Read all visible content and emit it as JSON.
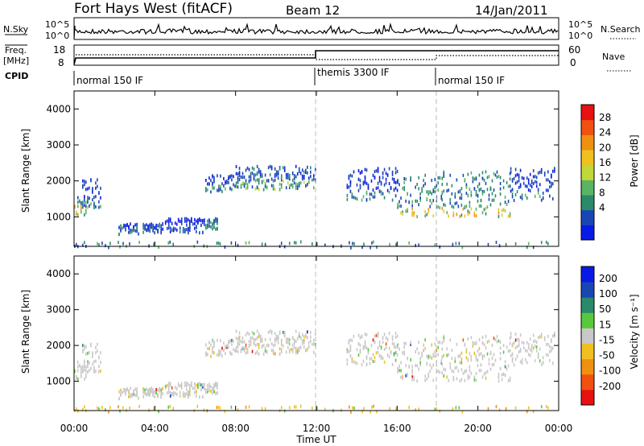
{
  "header": {
    "title": "Fort Hays West (fitACF)",
    "beam": "Beam 12",
    "date": "14/Jan/2011"
  },
  "top_panels": {
    "nsky_label": "N.Sky",
    "nsky_ticks": [
      "10^5",
      "10^0"
    ],
    "nsearch_label": "N.Search",
    "nsearch_ticks": [
      "10^5",
      "10^0"
    ],
    "freq_label": "Freq.",
    "freq_unit": "[MHz]",
    "freq_ticks": [
      "18",
      "8"
    ],
    "nave_label": "Nave",
    "nave_ticks": [
      "60",
      "0"
    ],
    "cpid_label": "CPID",
    "cpid_segments": [
      {
        "label": "normal 150 IF",
        "start": 0,
        "end": 12
      },
      {
        "label": "themis 3300 IF",
        "start": 12,
        "end": 18
      },
      {
        "label": "normal 150 IF",
        "start": 18,
        "end": 24
      }
    ]
  },
  "chart_data": [
    {
      "type": "heatmap",
      "panel": "power",
      "ylabel": "Slant Range [km]",
      "ylim": [
        180,
        4500
      ],
      "yticks": [
        "4000",
        "3000",
        "2000",
        "1000"
      ],
      "colorbar_label": "Power [dB]",
      "colorbar_ticks": [
        "28",
        "24",
        "20",
        "16",
        "12",
        "8",
        "4"
      ],
      "colors": [
        "#0a1ae6",
        "#1a46b4",
        "#2a8a6a",
        "#5ab464",
        "#c0d838",
        "#f0c020",
        "#f09010",
        "#f05010",
        "#e81010"
      ],
      "echo_regions": [
        {
          "t0": 0.0,
          "t1": 0.7,
          "r_low": 1100,
          "r_high": 1600,
          "peak": 24
        },
        {
          "t0": 0.4,
          "t1": 1.3,
          "r_low": 1300,
          "r_high": 2100,
          "peak": 12
        },
        {
          "t0": 2.2,
          "t1": 3.2,
          "r_low": 550,
          "r_high": 850,
          "peak": 8
        },
        {
          "t0": 3.4,
          "t1": 4.4,
          "r_low": 600,
          "r_high": 850,
          "peak": 8
        },
        {
          "t0": 4.5,
          "t1": 6.5,
          "r_low": 600,
          "r_high": 1000,
          "peak": 8
        },
        {
          "t0": 6.5,
          "t1": 7.1,
          "r_low": 700,
          "r_high": 1000,
          "peak": 12
        },
        {
          "t0": 6.5,
          "t1": 8.0,
          "r_low": 1700,
          "r_high": 2200,
          "peak": 12
        },
        {
          "t0": 8.0,
          "t1": 12.0,
          "r_low": 1800,
          "r_high": 2450,
          "peak": 16
        },
        {
          "t0": 13.5,
          "t1": 16.0,
          "r_low": 1500,
          "r_high": 2400,
          "peak": 12
        },
        {
          "t0": 16.0,
          "t1": 18.2,
          "r_low": 1050,
          "r_high": 2200,
          "peak": 24
        },
        {
          "t0": 18.2,
          "t1": 21.6,
          "r_low": 1050,
          "r_high": 2300,
          "peak": 24
        },
        {
          "t0": 21.6,
          "t1": 23.8,
          "r_low": 1500,
          "r_high": 2400,
          "peak": 12
        },
        {
          "t0": 0.0,
          "t1": 23.8,
          "r_low": 180,
          "r_high": 350,
          "peak": 12
        }
      ]
    },
    {
      "type": "heatmap",
      "panel": "velocity",
      "ylabel": "Slant Range [km]",
      "ylim": [
        180,
        4500
      ],
      "yticks": [
        "4000",
        "3000",
        "2000",
        "1000"
      ],
      "colorbar_label": "Velocity [m s⁻¹]",
      "colorbar_ticks": [
        "200",
        "100",
        "50",
        "15",
        "-15",
        "-50",
        "-100",
        "-200"
      ],
      "colors": [
        "#e81010",
        "#f05010",
        "#f09010",
        "#f0c020",
        "#c8c8c8",
        "#5ac83c",
        "#2a8a6a",
        "#1a46b4",
        "#0a1ae6"
      ],
      "xlabel": "Time UT",
      "xticks": [
        "00:00",
        "04:00",
        "08:00",
        "12:00",
        "16:00",
        "20:00",
        "00:00"
      ],
      "xlim_hours": [
        0,
        24
      ]
    }
  ]
}
